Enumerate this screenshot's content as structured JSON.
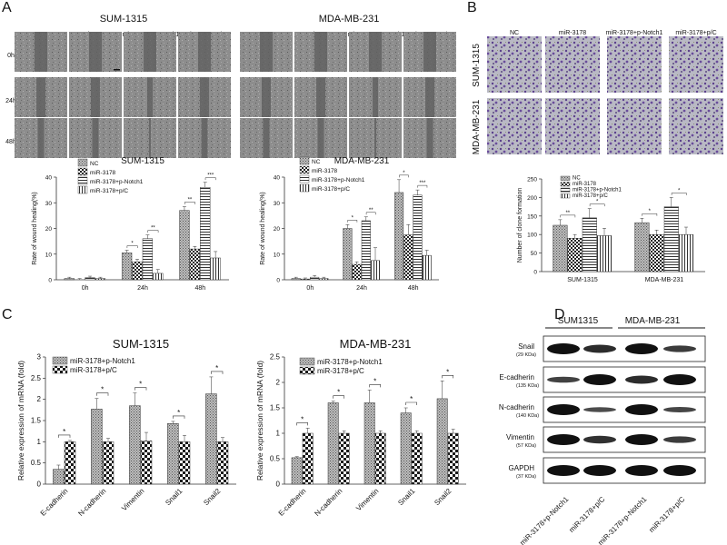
{
  "panel_letters": [
    "A",
    "B",
    "C",
    "D"
  ],
  "panelA": {
    "cell_lines": [
      "SUM-1315",
      "MDA-MB-231"
    ],
    "columns": [
      "NC",
      "miR-3178",
      "miR-3178+p-Notch1",
      "miR-3178+p/C"
    ],
    "rows": [
      "0h",
      "24h",
      "48h"
    ]
  },
  "panelB": {
    "columns": [
      "NC",
      "miR-3178",
      "miR-3178+p-Notch1",
      "miR-3178+p/C"
    ],
    "rows": [
      "SUM-1315",
      "MDA-MB-231"
    ]
  },
  "panelD": {
    "groups": [
      "SUM1315",
      "MDA-MB-231"
    ],
    "rows": [
      {
        "protein": "Snail",
        "kda": "(29 KDa)"
      },
      {
        "protein": "E-cadherin",
        "kda": "(135 KDa)"
      },
      {
        "protein": "N-cadherin",
        "kda": "(140 KDa)"
      },
      {
        "protein": "Vimentin",
        "kda": "(57 KDa)"
      },
      {
        "protein": "GAPDH",
        "kda": "(37 KDa)"
      }
    ],
    "lanes": [
      "miR-3178+p-Notch1",
      "miR-3178+p/C",
      "miR-3178+p-Notch1",
      "miR-3178+p/C"
    ]
  },
  "chart_data": [
    {
      "id": "wound-sum1315",
      "type": "bar",
      "title": "SUM-1315",
      "ylabel": "Rate of wound healing(%)",
      "xlabel": "",
      "categories": [
        "0h",
        "24h",
        "48h"
      ],
      "ylim": [
        0,
        40
      ],
      "yticks": [
        0,
        10,
        20,
        30,
        40
      ],
      "series": [
        {
          "name": "NC",
          "values": [
            0.5,
            10.5,
            27
          ],
          "errors": [
            0.5,
            1,
            1.5
          ]
        },
        {
          "name": "miR-3178",
          "values": [
            0,
            7,
            12
          ],
          "errors": [
            0.5,
            1,
            1
          ]
        },
        {
          "name": "miR-3178+p-Notch1",
          "values": [
            0.8,
            16,
            36
          ],
          "errors": [
            0.6,
            1.5,
            2
          ]
        },
        {
          "name": "miR-3178+p/C",
          "values": [
            0.5,
            2.5,
            8.5
          ],
          "errors": [
            0.5,
            1.5,
            2.5
          ]
        }
      ],
      "significance": [
        "*",
        "**",
        "**",
        "***"
      ]
    },
    {
      "id": "wound-mda",
      "type": "bar",
      "title": "MDA-MB-231",
      "ylabel": "Rate of wound healing(%)",
      "xlabel": "",
      "categories": [
        "0h",
        "24h",
        "48h"
      ],
      "ylim": [
        0,
        40
      ],
      "yticks": [
        0,
        10,
        20,
        30,
        40
      ],
      "series": [
        {
          "name": "NC",
          "values": [
            0.5,
            20,
            34
          ],
          "errors": [
            0.5,
            1.5,
            5
          ]
        },
        {
          "name": "miR-3178",
          "values": [
            0.3,
            6,
            17.5
          ],
          "errors": [
            0.4,
            1,
            4
          ]
        },
        {
          "name": "miR-3178+p-Notch1",
          "values": [
            1,
            23,
            33
          ],
          "errors": [
            0.7,
            1.5,
            2
          ]
        },
        {
          "name": "miR-3178+p/C",
          "values": [
            0.5,
            7.5,
            9.5
          ],
          "errors": [
            0.5,
            5,
            2
          ]
        }
      ],
      "significance": [
        "*",
        "**",
        "*",
        "***"
      ]
    },
    {
      "id": "clone-formation",
      "type": "bar",
      "title": "",
      "ylabel": "Number of clone formation",
      "xlabel": "",
      "categories": [
        "SUM-1315",
        "MDA-MB-231"
      ],
      "ylim": [
        0,
        250
      ],
      "yticks": [
        0,
        50,
        100,
        150,
        200,
        250
      ],
      "series": [
        {
          "name": "NC",
          "values": [
            125,
            132
          ],
          "errors": [
            15,
            12
          ]
        },
        {
          "name": "miR-3178",
          "values": [
            90,
            100
          ],
          "errors": [
            10,
            12
          ]
        },
        {
          "name": "miR-3178+p-Notch1",
          "values": [
            145,
            175
          ],
          "errors": [
            25,
            25
          ]
        },
        {
          "name": "miR-3178+p/C",
          "values": [
            97,
            100
          ],
          "errors": [
            20,
            20
          ]
        }
      ],
      "significance": [
        "**",
        "*",
        "*",
        "*"
      ]
    },
    {
      "id": "mrna-sum1315",
      "type": "bar",
      "title": "SUM-1315",
      "ylabel": "Relative expression of mRNA (fold)",
      "xlabel": "",
      "categories": [
        "E-cadherin",
        "N-cadherin",
        "Vimentin",
        "Snail1",
        "Snail2"
      ],
      "ylim": [
        0,
        3
      ],
      "yticks": [
        0,
        0.5,
        1,
        1.5,
        2,
        2.5,
        3
      ],
      "series": [
        {
          "name": "miR-3178+p-Notch1",
          "values": [
            0.35,
            1.77,
            1.85,
            1.43,
            2.13
          ],
          "errors": [
            0.1,
            0.25,
            0.3,
            0.05,
            0.4
          ]
        },
        {
          "name": "miR-3178+p/C",
          "values": [
            1.0,
            1.0,
            1.02,
            1.0,
            1.0
          ],
          "errors": [
            0.03,
            0.08,
            0.2,
            0.15,
            0.1
          ]
        }
      ],
      "significance": [
        "*",
        "*",
        "*",
        "*",
        "*"
      ]
    },
    {
      "id": "mrna-mda",
      "type": "bar",
      "title": "MDA-MB-231",
      "ylabel": "Relative expression of mRNA (fold)",
      "xlabel": "",
      "categories": [
        "E-cadherin",
        "N-cadherin",
        "Vimentin",
        "Snail1",
        "Snail2"
      ],
      "ylim": [
        0,
        2.5
      ],
      "yticks": [
        0,
        0.5,
        1,
        1.5,
        2,
        2.5
      ],
      "series": [
        {
          "name": "miR-3178+p-Notch1",
          "values": [
            0.52,
            1.6,
            1.6,
            1.4,
            1.68
          ],
          "errors": [
            0.02,
            0.03,
            0.25,
            0.1,
            0.35
          ]
        },
        {
          "name": "miR-3178+p/C",
          "values": [
            1.0,
            1.0,
            1.0,
            1.0,
            1.0
          ],
          "errors": [
            0.1,
            0.05,
            0.05,
            0.05,
            0.08
          ]
        }
      ],
      "significance": [
        "*",
        "*",
        "*",
        "*",
        "*"
      ]
    }
  ]
}
